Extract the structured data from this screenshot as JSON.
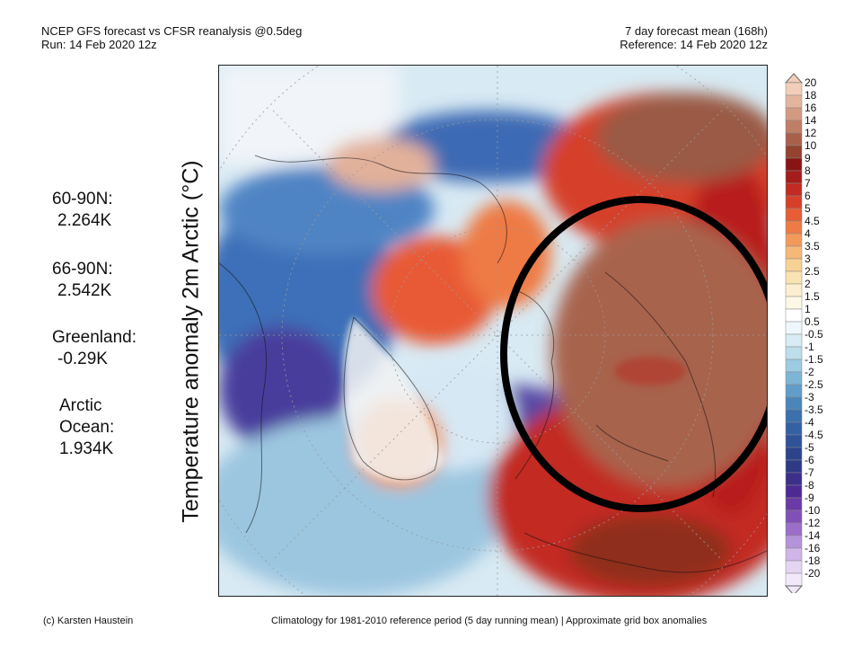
{
  "header": {
    "title_line1": "NCEP GFS forecast vs CFSR reanalysis @0.5deg",
    "title_line2": "Run: 14 Feb 2020 12z",
    "right_line1": "7 day forecast mean (168h)",
    "right_line2": "Reference: 14 Feb 2020 12z"
  },
  "stats": [
    {
      "label": "60-90N:",
      "value": "2.264K"
    },
    {
      "label": "66-90N:",
      "value": "2.542K"
    },
    {
      "label": "Greenland:",
      "value": "-0.29K"
    },
    {
      "label_line1": "Arctic",
      "label_line2": "Ocean:",
      "value": "1.934K"
    }
  ],
  "y_label": "Temperature anomaly 2m Arctic (°C)",
  "colorbar": {
    "labels": [
      "20",
      "18",
      "16",
      "14",
      "12",
      "10",
      "9",
      "8",
      "7",
      "6",
      "5",
      "4.5",
      "4",
      "3.5",
      "3",
      "2.5",
      "2",
      "1.5",
      "1",
      "0.5",
      "-0.5",
      "-1",
      "-1.5",
      "-2",
      "-2.5",
      "-3",
      "-3.5",
      "-4",
      "-4.5",
      "-5",
      "-6",
      "-7",
      "-8",
      "-9",
      "-10",
      "-12",
      "-14",
      "-16",
      "-18",
      "-20"
    ],
    "colors": [
      "#f2cdb7",
      "#e4b49e",
      "#d39a82",
      "#c07e66",
      "#a9604a",
      "#93432f",
      "#8a1414",
      "#a51c1c",
      "#c22a22",
      "#d6402a",
      "#e65d36",
      "#ee7a45",
      "#f39a5a",
      "#f6b877",
      "#f8d194",
      "#fae3b2",
      "#fbefd0",
      "#fdf7e6",
      "#ffffff",
      "#eef7fb",
      "#d7ecf4",
      "#bcdeed",
      "#9ccbe2",
      "#7db5d6",
      "#619dc9",
      "#4a85bb",
      "#3b6fae",
      "#3460a4",
      "#2f5299",
      "#2c448c",
      "#2f3a86",
      "#3b2f8a",
      "#4d2a93",
      "#6a3aa6",
      "#8050b8",
      "#9a6ec9",
      "#b592d9",
      "#cfb5e8",
      "#e4d5f3",
      "#f1e8fa"
    ]
  },
  "footer": {
    "left": "(c) Karsten Haustein",
    "right": "Climatology for 1981-2010 reference period (5 day running mean) | Approximate grid box anomalies"
  }
}
